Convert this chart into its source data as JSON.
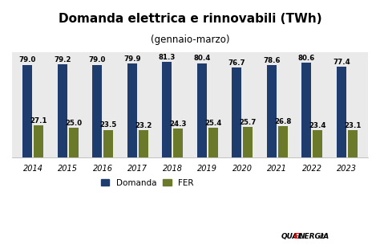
{
  "title": "Domanda elettrica e rinnovabili (TWh)",
  "subtitle": "(gennaio-marzo)",
  "years": [
    2014,
    2015,
    2016,
    2017,
    2018,
    2019,
    2020,
    2021,
    2022,
    2023
  ],
  "domanda": [
    79.0,
    79.2,
    79.0,
    79.9,
    81.3,
    80.4,
    76.7,
    78.6,
    80.6,
    77.4
  ],
  "fer": [
    27.1,
    25.0,
    23.5,
    23.2,
    24.3,
    25.4,
    25.7,
    26.8,
    23.4,
    23.1
  ],
  "domanda_color": "#1F3C6E",
  "fer_color": "#6B7A2A",
  "background_color": "#FFFFFF",
  "plot_bg_color": "#EAEAEA",
  "bar_width": 0.28,
  "ylim": [
    0,
    90
  ],
  "legend_domanda": "Domanda",
  "legend_fer": "FER",
  "title_fontsize": 11,
  "subtitle_fontsize": 8.5,
  "label_fontsize": 6.2,
  "tick_fontsize": 7
}
